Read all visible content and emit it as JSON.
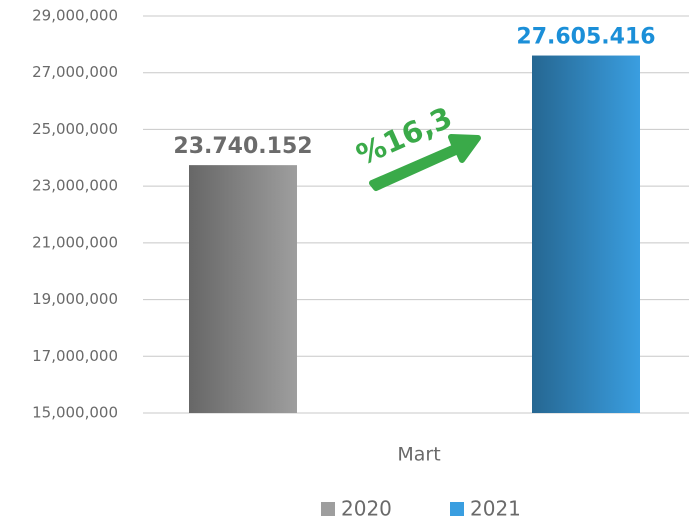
{
  "chart_data": {
    "type": "bar",
    "categories": [
      "Mart"
    ],
    "series": [
      {
        "name": "2020",
        "color": "#9e9e9e",
        "values": [
          23740152
        ],
        "value_labels": [
          "23.740.152"
        ],
        "label_color": "#6b6b6b"
      },
      {
        "name": "2021",
        "color": "#3a9ee0",
        "values": [
          27605416
        ],
        "value_labels": [
          "27.605.416"
        ],
        "label_color": "#1b8fd8"
      }
    ],
    "annotation": "%16,3",
    "ylim": [
      15000000,
      29000000
    ],
    "yticks": [
      {
        "value": 15000000,
        "label": "15,000,000"
      },
      {
        "value": 17000000,
        "label": "17,000,000"
      },
      {
        "value": 19000000,
        "label": "19,000,000"
      },
      {
        "value": 21000000,
        "label": "21,000,000"
      },
      {
        "value": 23000000,
        "label": "23,000,000"
      },
      {
        "value": 25000000,
        "label": "25,000,000"
      },
      {
        "value": 27000000,
        "label": "27,000,000"
      },
      {
        "value": 29000000,
        "label": "29,000,000"
      }
    ],
    "grid": true,
    "legend": "bottom"
  }
}
